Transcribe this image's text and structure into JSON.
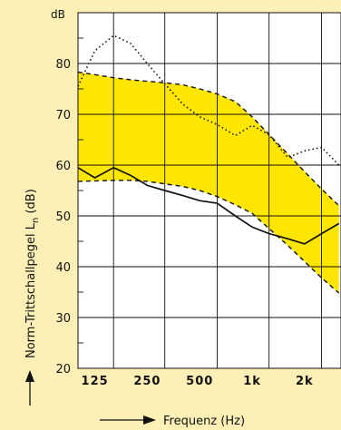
{
  "chart_data": {
    "type": "line",
    "y_unit": "dB",
    "ylabel": "Norm-Trittschallpegel L",
    "ylabel_sub": "n",
    "ylabel_suffix": " (dB)",
    "xlabel": "Frequenz (Hz)",
    "ylim": [
      20,
      90
    ],
    "y_ticks": [
      20,
      30,
      40,
      50,
      60,
      70,
      80
    ],
    "x_scale": "log",
    "x_ticks": [
      {
        "value": 125,
        "label": "125"
      },
      {
        "value": 250,
        "label": "250"
      },
      {
        "value": 500,
        "label": "500"
      },
      {
        "value": 1000,
        "label": "1k"
      },
      {
        "value": 2000,
        "label": "2k"
      }
    ],
    "x_freqs": [
      100,
      125,
      160,
      200,
      250,
      315,
      400,
      500,
      630,
      800,
      1000,
      1250,
      1600,
      2000,
      2500,
      3150
    ],
    "grid": true,
    "colors": {
      "band": "#ffe600",
      "background": "#fdf0b6",
      "plot_background": "#ffffff",
      "lines": "#111111"
    },
    "band": {
      "upper": [
        78.3,
        77.8,
        77.2,
        76.8,
        76.5,
        76.2,
        75.8,
        75.0,
        74.0,
        72.5,
        69.5,
        66.0,
        62.2,
        58.7,
        55.3,
        52.0
      ],
      "lower": [
        56.8,
        56.9,
        57.0,
        57.0,
        56.8,
        56.3,
        55.8,
        55.0,
        53.8,
        52.2,
        50.5,
        47.5,
        44.2,
        41.0,
        37.8,
        34.8
      ]
    },
    "series": [
      {
        "style": "solid",
        "values": [
          59.5,
          57.5,
          59.5,
          58.0,
          56.0,
          55.0,
          54.0,
          53.0,
          52.5,
          50.0,
          47.8,
          46.5,
          45.5,
          44.5,
          46.5,
          48.5
        ]
      },
      {
        "style": "dotted",
        "values": [
          75.5,
          82.5,
          85.5,
          84.0,
          80.0,
          76.0,
          72.0,
          69.5,
          68.0,
          65.8,
          67.8,
          66.0,
          61.5,
          62.8,
          63.5,
          60.0
        ]
      }
    ]
  }
}
